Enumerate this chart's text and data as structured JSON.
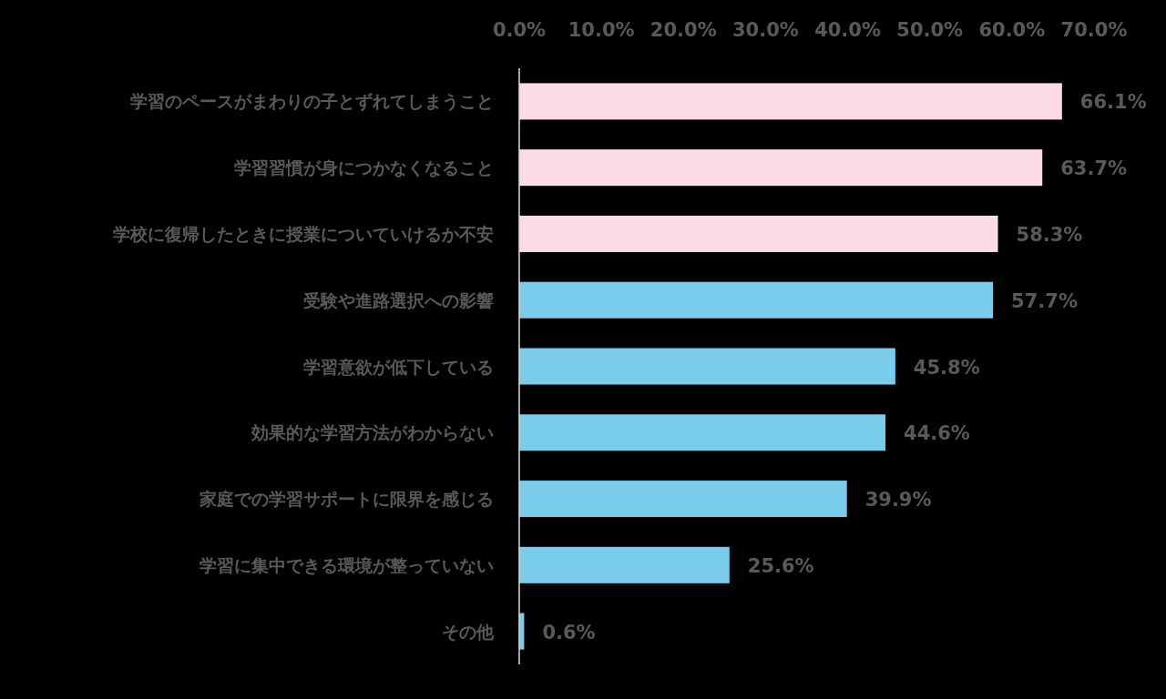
{
  "chart_data": {
    "type": "bar",
    "orientation": "horizontal",
    "categories": [
      "学習のペースがまわりの子とずれてしまうこと",
      "学習習慣が身につかなくなること",
      "学校に復帰したときに授業についていけるか不安",
      "受験や進路選択への影響",
      "学習意欲が低下している",
      "効果的な学習方法がわからない",
      "家庭での学習サポートに限界を感じる",
      "学習に集中できる環境が整っていない",
      "その他"
    ],
    "values": [
      66.1,
      63.7,
      58.3,
      57.7,
      45.8,
      44.6,
      39.9,
      25.6,
      0.6
    ],
    "colors": [
      "#fadbe6",
      "#fadbe6",
      "#fadbe6",
      "#79cdeb",
      "#79cdeb",
      "#79cdeb",
      "#79cdeb",
      "#79cdeb",
      "#79cdeb"
    ],
    "value_labels": [
      "66.1%",
      "63.7%",
      "58.3%",
      "57.7%",
      "45.8%",
      "44.6%",
      "39.9%",
      "25.6%",
      "0.6%"
    ],
    "xlim": [
      0,
      70
    ],
    "xticks": [
      {
        "value": 0,
        "label": "0.0%"
      },
      {
        "value": 10,
        "label": "10.0%"
      },
      {
        "value": 20,
        "label": "20.0%"
      },
      {
        "value": 30,
        "label": "30.0%"
      },
      {
        "value": 40,
        "label": "40.0%"
      },
      {
        "value": 50,
        "label": "50.0%"
      },
      {
        "value": 60,
        "label": "60.0%"
      },
      {
        "value": 70,
        "label": "70.0%"
      }
    ],
    "grid": false
  }
}
